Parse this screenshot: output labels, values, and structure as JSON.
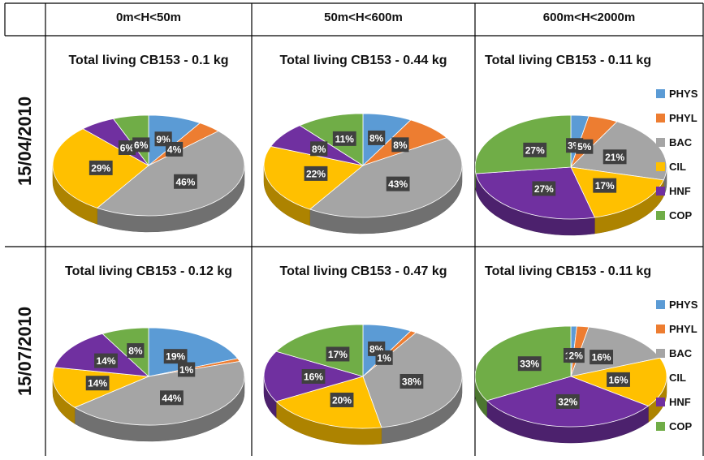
{
  "colors": {
    "PHYS": "#5b9bd5",
    "PHYL": "#ed7d31",
    "BAC": "#a5a5a5",
    "CIL": "#ffc000",
    "HNF": "#7030a0",
    "COP": "#70ad47"
  },
  "columns": [
    "0m<H<50m",
    "50m<H<600m",
    "600m<H<2000m"
  ],
  "rows": [
    "15/04/2010",
    "15/07/2010"
  ],
  "legend": [
    "PHYS",
    "PHYL",
    "BAC",
    "CIL",
    "HNF",
    "COP"
  ],
  "chart_data": [
    {
      "type": "pie",
      "title": "Total living CB153 - 0.1 kg",
      "categories": [
        "PHYS",
        "PHYL",
        "BAC",
        "CIL",
        "HNF",
        "COP"
      ],
      "values": [
        9,
        4,
        46,
        29,
        6,
        6
      ],
      "labels": [
        "9%",
        "4%",
        "46%",
        "29%",
        "6%",
        "6%"
      ]
    },
    {
      "type": "pie",
      "title": "Total living CB153 - 0.44 kg",
      "categories": [
        "PHYS",
        "PHYL",
        "BAC",
        "CIL",
        "HNF",
        "COP"
      ],
      "values": [
        8,
        8,
        43,
        22,
        8,
        11
      ],
      "labels": [
        "8%",
        "8%",
        "43%",
        "22%",
        "8%",
        "11%"
      ]
    },
    {
      "type": "pie",
      "title": "Total living CB153 - 0.11 kg",
      "categories": [
        "PHYS",
        "PHYL",
        "BAC",
        "CIL",
        "HNF",
        "COP"
      ],
      "values": [
        3,
        5,
        21,
        17,
        27,
        27
      ],
      "labels": [
        "3%",
        "5%",
        "21%",
        "17%",
        "27%",
        "27%"
      ]
    },
    {
      "type": "pie",
      "title": "Total living CB153 - 0.12 kg",
      "categories": [
        "PHYS",
        "PHYL",
        "BAC",
        "CIL",
        "HNF",
        "COP"
      ],
      "values": [
        19,
        1,
        44,
        14,
        14,
        8
      ],
      "labels": [
        "19%",
        "1%",
        "44%",
        "14%",
        "14%",
        "8%"
      ]
    },
    {
      "type": "pie",
      "title": "Total living CB153 - 0.47 kg",
      "categories": [
        "PHYS",
        "PHYL",
        "BAC",
        "CIL",
        "HNF",
        "COP"
      ],
      "values": [
        8,
        1,
        38,
        20,
        16,
        17
      ],
      "labels": [
        "8%",
        "1%",
        "38%",
        "20%",
        "16%",
        "17%"
      ]
    },
    {
      "type": "pie",
      "title": "Total living CB153 - 0.11 kg",
      "categories": [
        "PHYS",
        "PHYL",
        "BAC",
        "CIL",
        "HNF",
        "COP"
      ],
      "values": [
        1,
        2,
        16,
        16,
        32,
        33
      ],
      "labels": [
        "1%",
        "2%",
        "16%",
        "16%",
        "32%",
        "33%"
      ]
    }
  ]
}
